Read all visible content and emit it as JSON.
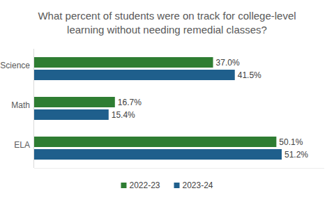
{
  "chart_data": {
    "type": "bar",
    "orientation": "horizontal",
    "title": "What percent of students were on track for college-level learning without needing remedial classes?",
    "categories": [
      "Science",
      "Math",
      "ELA"
    ],
    "series": [
      {
        "name": "2022-23",
        "color": "#2e7d32",
        "values": [
          37.0,
          16.7,
          50.1
        ],
        "value_labels": [
          "37.0%",
          "16.7%",
          "50.1%"
        ]
      },
      {
        "name": "2023-24",
        "color": "#1f5f8c",
        "values": [
          41.5,
          15.4,
          51.2
        ],
        "value_labels": [
          "41.5%",
          "15.4%",
          "51.2%"
        ]
      }
    ],
    "xlim": [
      0,
      60
    ],
    "grid": false,
    "data_labels": true,
    "tick_labels": "y",
    "legend": "bottom"
  }
}
